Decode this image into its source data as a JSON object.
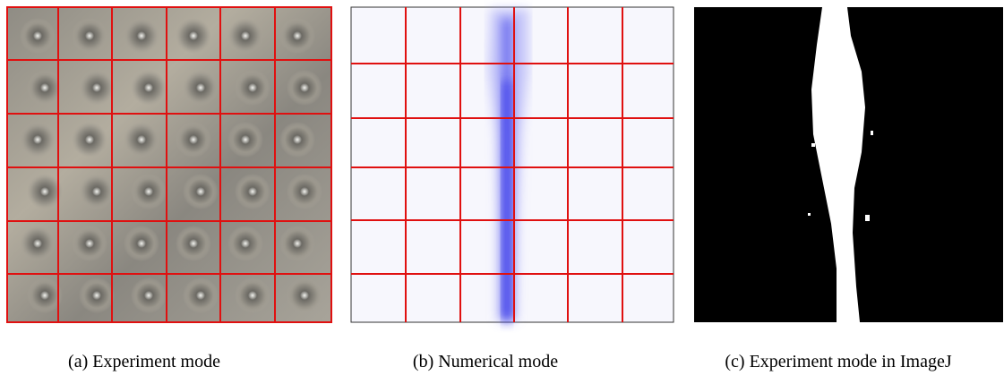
{
  "panels": [
    {
      "caption": "(a) Experiment mode"
    },
    {
      "caption": "(b) Numerical mode"
    },
    {
      "caption": "(c) Experiment mode in ImageJ"
    }
  ]
}
